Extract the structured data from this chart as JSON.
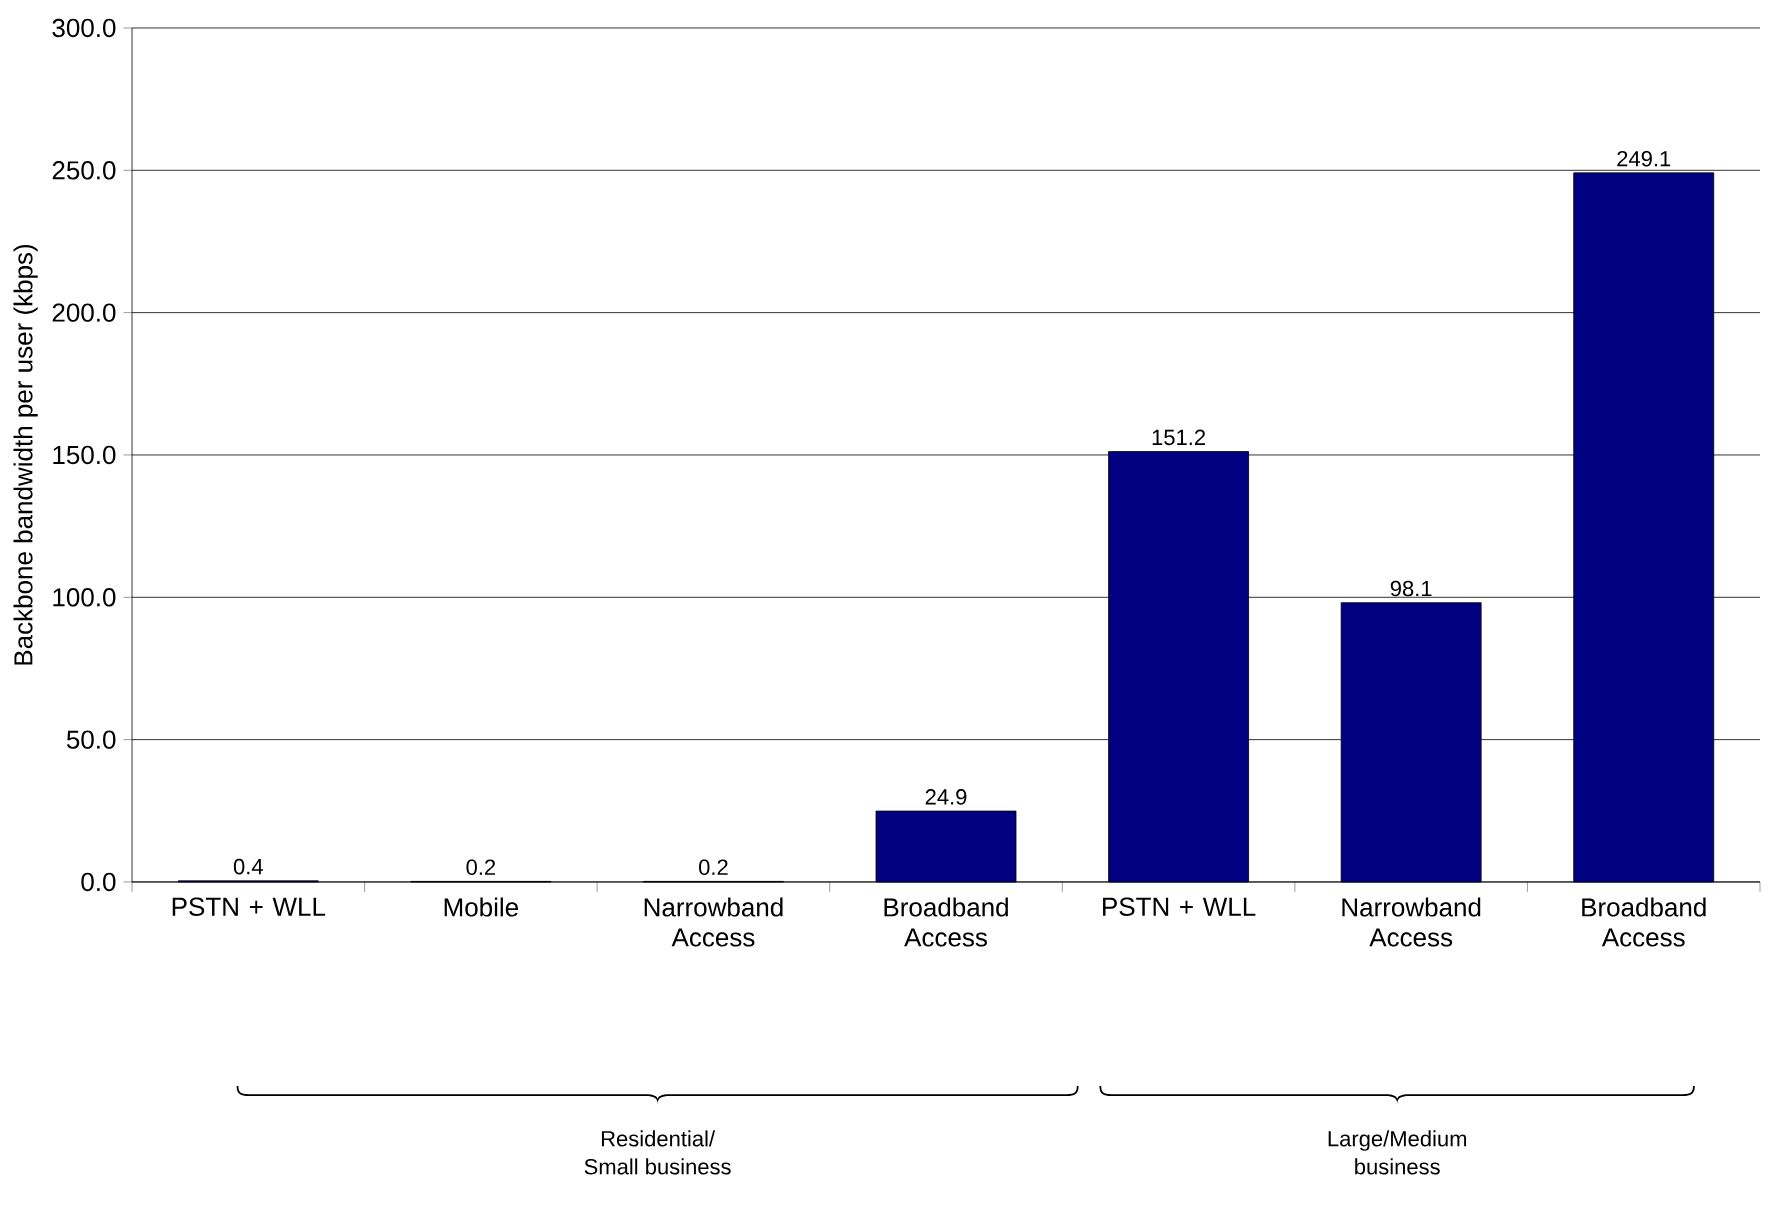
{
  "chart_data": {
    "type": "bar",
    "ylabel": "Backbone bandwidth per user (kbps)",
    "categories": [
      "PSTN + WLL",
      "Mobile",
      "Narrowband Access",
      "Broadband Access",
      "PSTN + WLL",
      "Narrowband Access",
      "Broadband Access"
    ],
    "values": [
      0.4,
      0.2,
      0.2,
      24.9,
      151.2,
      98.1,
      249.1
    ],
    "color": "#000080",
    "ylim": [
      0,
      300
    ],
    "yticks": [
      {
        "value": 0,
        "label": "0.0"
      },
      {
        "value": 50,
        "label": "50.0"
      },
      {
        "value": 100,
        "label": "100.0"
      },
      {
        "value": 150,
        "label": "150.0"
      },
      {
        "value": 200,
        "label": "200.0"
      },
      {
        "value": 250,
        "label": "250.0"
      },
      {
        "value": 300,
        "label": "300.0"
      }
    ],
    "grid": "y",
    "data_labels": true,
    "annotations": [
      "Residential/\nSmall business",
      "Large/Medium\nbusiness"
    ]
  }
}
